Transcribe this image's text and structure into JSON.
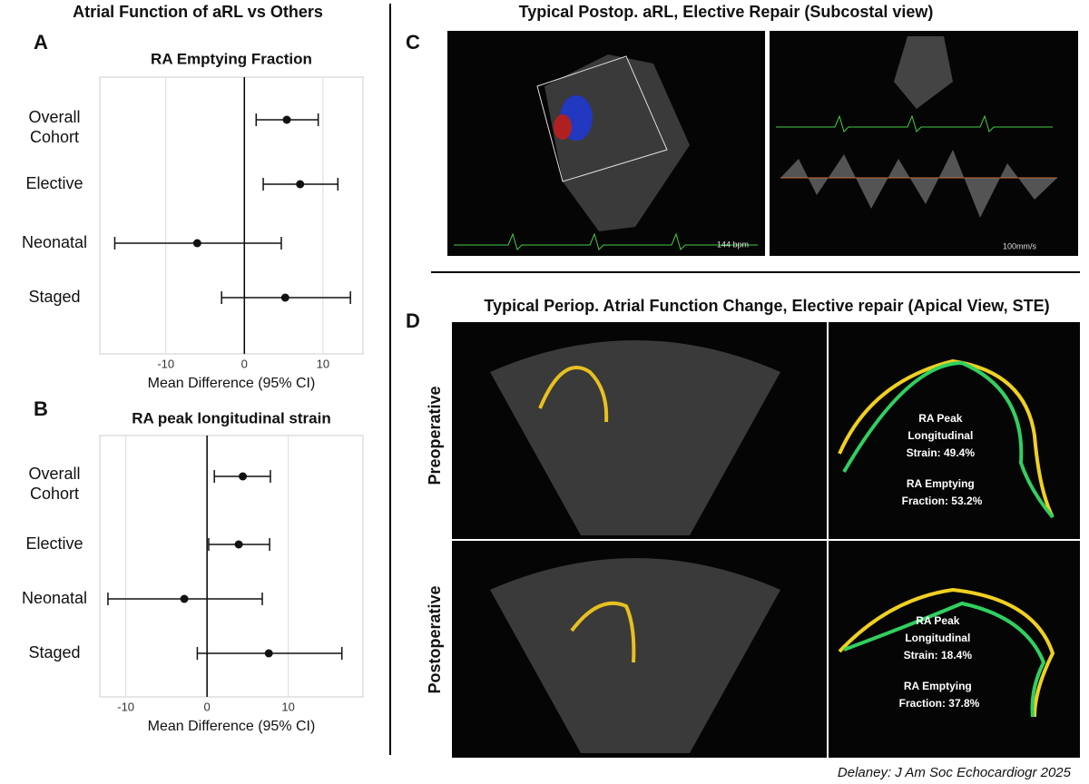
{
  "title": "Atrial Function of aRL vs Others",
  "chart_data": [
    {
      "type": "forest",
      "panel": "A",
      "title": "RA Emptying Fraction",
      "categories": [
        "Overall\nCohort",
        "Elective",
        "Neonatal",
        "Staged"
      ],
      "values": [
        5.4,
        7.1,
        -6.0,
        5.2
      ],
      "ci_low": [
        1.5,
        2.4,
        -16.5,
        -2.9
      ],
      "ci_high": [
        9.4,
        11.9,
        4.7,
        13.5
      ],
      "xlabel": "Mean Difference (95% CI)",
      "xlim": [
        -18.4,
        15.1
      ],
      "xticks": [
        -10,
        0,
        10
      ],
      "grid": true,
      "color": "#111111"
    },
    {
      "type": "forest",
      "panel": "B",
      "title": "RA peak longitudinal strain",
      "categories": [
        "Overall\nCohort",
        "Elective",
        "Neonatal",
        "Staged"
      ],
      "values": [
        4.4,
        3.9,
        -2.8,
        7.6
      ],
      "ci_low": [
        0.9,
        0.2,
        -12.2,
        -1.2
      ],
      "ci_high": [
        7.8,
        7.7,
        6.8,
        16.6
      ],
      "xlabel": "Mean Difference (95% CI)",
      "xlim": [
        -13.2,
        19.2
      ],
      "xticks": [
        -10,
        0,
        10
      ],
      "grid": true,
      "color": "#111111"
    }
  ],
  "panels": {
    "c": {
      "label": "C",
      "title": "Typical Postop. aRL, Elective Repair (Subcostal view)",
      "hr": "144 bpm",
      "speed": "100mm/s"
    },
    "d": {
      "label": "D",
      "title": "Typical Periop. Atrial Function Change, Elective repair (Apical View, STE)",
      "rows": [
        {
          "name": "Preoperative",
          "strain": [
            "RA Peak",
            "Longitudinal",
            "Strain: 49.4%"
          ],
          "ef": [
            "RA Emptying",
            "Fraction: 53.2%"
          ]
        },
        {
          "name": "Postoperative",
          "strain": [
            "RA Peak",
            "Longitudinal",
            "Strain: 18.4%"
          ],
          "ef": [
            "RA Emptying",
            "Fraction: 37.8%"
          ]
        }
      ]
    }
  },
  "citation": "Delaney: J Am Soc Echocardiogr 2025"
}
